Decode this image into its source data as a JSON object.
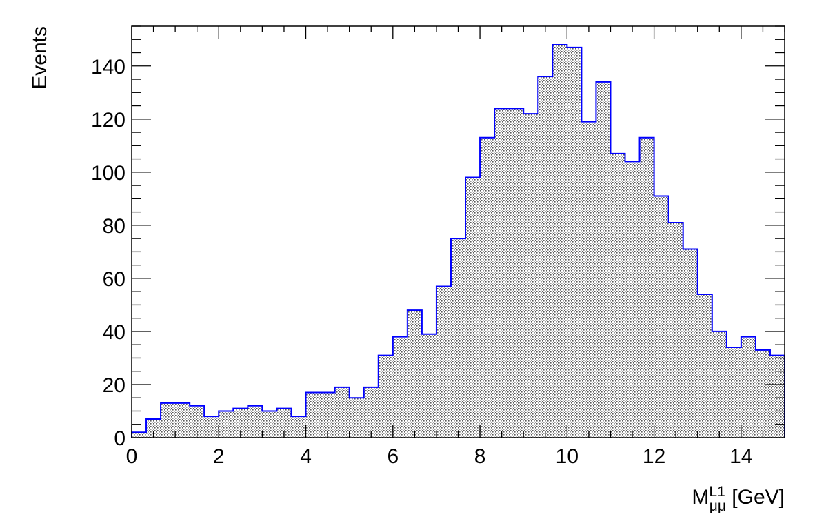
{
  "chart_data": {
    "type": "bar",
    "title": "",
    "xlabel": "M",
    "xlabel_superscript": "L1",
    "xlabel_subscript": "μμ",
    "xlabel_unit": " [GeV]",
    "ylabel": "Events",
    "xlim": [
      0,
      15
    ],
    "ylim": [
      0,
      155
    ],
    "bin_width": 0.3333,
    "x_ticks": [
      "0",
      "2",
      "4",
      "6",
      "8",
      "10",
      "12",
      "14"
    ],
    "y_ticks": [
      "0",
      "20",
      "40",
      "60",
      "80",
      "100",
      "120",
      "140"
    ],
    "grid": false,
    "legend": "none",
    "series": [
      {
        "values": [
          2,
          7,
          13,
          13,
          12,
          8,
          10,
          11,
          12,
          10,
          11,
          8,
          17,
          17,
          19,
          15,
          19,
          31,
          38,
          48,
          39,
          57,
          75,
          98,
          113,
          124,
          124,
          122,
          136,
          148,
          147,
          119,
          134,
          107,
          104,
          113,
          91,
          81,
          71,
          54,
          40,
          34,
          38,
          33,
          31
        ],
        "fill_pattern": "dotted-hatch",
        "line_color": "#0000ff"
      }
    ]
  }
}
